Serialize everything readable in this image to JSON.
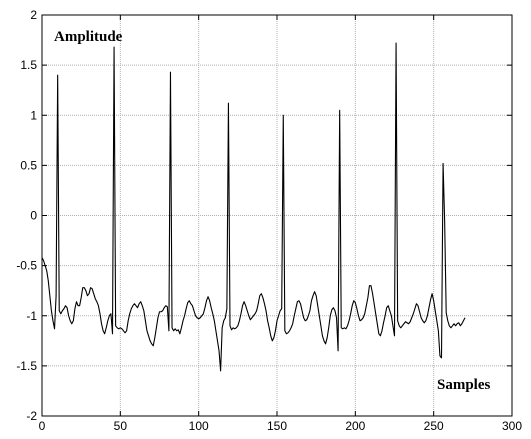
{
  "chart_data": {
    "type": "line",
    "title": "",
    "xlabel": "Samples",
    "ylabel": "Amplitude",
    "xlim": [
      0,
      300
    ],
    "ylim": [
      -2,
      2
    ],
    "xticks": [
      0,
      50,
      100,
      150,
      200,
      250,
      300
    ],
    "yticks": [
      -2,
      -1.5,
      -1,
      -0.5,
      0,
      0.5,
      1,
      1.5,
      2
    ],
    "grid": true,
    "line_color": "#000000",
    "grid_color": "#b0b0b0",
    "series": [
      {
        "points": [
          [
            0,
            -0.42
          ],
          [
            1,
            -0.45
          ],
          [
            2,
            -0.5
          ],
          [
            3,
            -0.55
          ],
          [
            4,
            -0.65
          ],
          [
            5,
            -0.8
          ],
          [
            6,
            -0.95
          ],
          [
            7,
            -1.05
          ],
          [
            8,
            -1.13
          ],
          [
            9,
            -0.8
          ],
          [
            10,
            1.4
          ],
          [
            11,
            -0.95
          ],
          [
            12,
            -0.98
          ],
          [
            13,
            -0.95
          ],
          [
            14,
            -0.93
          ],
          [
            15,
            -0.9
          ],
          [
            16,
            -0.92
          ],
          [
            17,
            -1.0
          ],
          [
            18,
            -1.05
          ],
          [
            19,
            -1.08
          ],
          [
            20,
            -1.05
          ],
          [
            21,
            -0.93
          ],
          [
            22,
            -0.86
          ],
          [
            23,
            -0.9
          ],
          [
            24,
            -0.9
          ],
          [
            25,
            -0.82
          ],
          [
            26,
            -0.72
          ],
          [
            27,
            -0.72
          ],
          [
            28,
            -0.75
          ],
          [
            29,
            -0.8
          ],
          [
            30,
            -0.78
          ],
          [
            31,
            -0.72
          ],
          [
            32,
            -0.73
          ],
          [
            33,
            -0.78
          ],
          [
            34,
            -0.83
          ],
          [
            35,
            -0.86
          ],
          [
            36,
            -0.9
          ],
          [
            37,
            -0.98
          ],
          [
            38,
            -1.08
          ],
          [
            39,
            -1.15
          ],
          [
            40,
            -1.18
          ],
          [
            41,
            -1.12
          ],
          [
            42,
            -1.05
          ],
          [
            43,
            -1.0
          ],
          [
            44,
            -0.98
          ],
          [
            45,
            -1.18
          ],
          [
            46,
            1.68
          ],
          [
            47,
            -1.1
          ],
          [
            48,
            -1.12
          ],
          [
            49,
            -1.13
          ],
          [
            50,
            -1.12
          ],
          [
            51,
            -1.13
          ],
          [
            52,
            -1.15
          ],
          [
            53,
            -1.17
          ],
          [
            54,
            -1.15
          ],
          [
            55,
            -1.05
          ],
          [
            56,
            -0.98
          ],
          [
            57,
            -0.93
          ],
          [
            58,
            -0.9
          ],
          [
            59,
            -0.88
          ],
          [
            60,
            -0.9
          ],
          [
            61,
            -0.92
          ],
          [
            62,
            -0.88
          ],
          [
            63,
            -0.86
          ],
          [
            64,
            -0.9
          ],
          [
            65,
            -0.95
          ],
          [
            66,
            -1.05
          ],
          [
            67,
            -1.15
          ],
          [
            68,
            -1.2
          ],
          [
            69,
            -1.25
          ],
          [
            70,
            -1.28
          ],
          [
            71,
            -1.3
          ],
          [
            72,
            -1.22
          ],
          [
            73,
            -1.12
          ],
          [
            74,
            -1.02
          ],
          [
            75,
            -0.96
          ],
          [
            76,
            -0.96
          ],
          [
            77,
            -0.95
          ],
          [
            78,
            -0.92
          ],
          [
            79,
            -0.9
          ],
          [
            80,
            -0.91
          ],
          [
            81,
            -1.15
          ],
          [
            82,
            1.43
          ],
          [
            83,
            -1.12
          ],
          [
            84,
            -1.15
          ],
          [
            85,
            -1.13
          ],
          [
            86,
            -1.15
          ],
          [
            87,
            -1.14
          ],
          [
            88,
            -1.18
          ],
          [
            89,
            -1.12
          ],
          [
            90,
            -1.05
          ],
          [
            91,
            -1.0
          ],
          [
            92,
            -0.93
          ],
          [
            93,
            -0.87
          ],
          [
            94,
            -0.85
          ],
          [
            95,
            -0.88
          ],
          [
            96,
            -0.9
          ],
          [
            97,
            -0.95
          ],
          [
            98,
            -1.0
          ],
          [
            99,
            -1.02
          ],
          [
            100,
            -1.03
          ],
          [
            101,
            -1.02
          ],
          [
            102,
            -1.0
          ],
          [
            103,
            -0.98
          ],
          [
            104,
            -0.92
          ],
          [
            105,
            -0.85
          ],
          [
            106,
            -0.81
          ],
          [
            107,
            -0.85
          ],
          [
            108,
            -0.92
          ],
          [
            109,
            -0.98
          ],
          [
            110,
            -1.05
          ],
          [
            111,
            -1.15
          ],
          [
            112,
            -1.25
          ],
          [
            113,
            -1.35
          ],
          [
            114,
            -1.55
          ],
          [
            115,
            -1.12
          ],
          [
            116,
            -1.05
          ],
          [
            117,
            -1.02
          ],
          [
            118,
            -0.93
          ],
          [
            119,
            1.12
          ],
          [
            120,
            -1.1
          ],
          [
            121,
            -1.14
          ],
          [
            122,
            -1.12
          ],
          [
            123,
            -1.13
          ],
          [
            124,
            -1.12
          ],
          [
            125,
            -1.1
          ],
          [
            126,
            -1.05
          ],
          [
            127,
            -0.98
          ],
          [
            128,
            -0.9
          ],
          [
            129,
            -0.86
          ],
          [
            130,
            -0.9
          ],
          [
            131,
            -0.95
          ],
          [
            132,
            -1.0
          ],
          [
            133,
            -1.04
          ],
          [
            134,
            -1.02
          ],
          [
            135,
            -1.0
          ],
          [
            136,
            -0.98
          ],
          [
            137,
            -0.95
          ],
          [
            138,
            -0.88
          ],
          [
            139,
            -0.8
          ],
          [
            140,
            -0.78
          ],
          [
            141,
            -0.82
          ],
          [
            142,
            -0.88
          ],
          [
            143,
            -0.95
          ],
          [
            144,
            -1.05
          ],
          [
            145,
            -1.12
          ],
          [
            146,
            -1.2
          ],
          [
            147,
            -1.25
          ],
          [
            148,
            -1.22
          ],
          [
            149,
            -1.15
          ],
          [
            150,
            -1.05
          ],
          [
            151,
            -1.0
          ],
          [
            152,
            -0.95
          ],
          [
            153,
            -0.93
          ],
          [
            154,
            1.0
          ],
          [
            155,
            -1.15
          ],
          [
            156,
            -1.18
          ],
          [
            157,
            -1.17
          ],
          [
            158,
            -1.15
          ],
          [
            159,
            -1.12
          ],
          [
            160,
            -1.08
          ],
          [
            161,
            -1.0
          ],
          [
            162,
            -0.93
          ],
          [
            163,
            -0.86
          ],
          [
            164,
            -0.85
          ],
          [
            165,
            -0.88
          ],
          [
            166,
            -0.95
          ],
          [
            167,
            -1.02
          ],
          [
            168,
            -1.05
          ],
          [
            169,
            -1.04
          ],
          [
            170,
            -1.0
          ],
          [
            171,
            -0.95
          ],
          [
            172,
            -0.85
          ],
          [
            173,
            -0.8
          ],
          [
            174,
            -0.76
          ],
          [
            175,
            -0.8
          ],
          [
            176,
            -0.9
          ],
          [
            177,
            -1.0
          ],
          [
            178,
            -1.1
          ],
          [
            179,
            -1.2
          ],
          [
            180,
            -1.25
          ],
          [
            181,
            -1.28
          ],
          [
            182,
            -1.22
          ],
          [
            183,
            -1.12
          ],
          [
            184,
            -1.0
          ],
          [
            185,
            -0.94
          ],
          [
            186,
            -0.92
          ],
          [
            187,
            -0.95
          ],
          [
            188,
            -1.02
          ],
          [
            189,
            -1.35
          ],
          [
            190,
            1.05
          ],
          [
            191,
            -1.12
          ],
          [
            192,
            -1.13
          ],
          [
            193,
            -1.12
          ],
          [
            194,
            -1.13
          ],
          [
            195,
            -1.1
          ],
          [
            196,
            -1.05
          ],
          [
            197,
            -0.98
          ],
          [
            198,
            -0.9
          ],
          [
            199,
            -0.85
          ],
          [
            200,
            -0.87
          ],
          [
            201,
            -0.93
          ],
          [
            202,
            -1.0
          ],
          [
            203,
            -1.05
          ],
          [
            204,
            -1.04
          ],
          [
            205,
            -1.02
          ],
          [
            206,
            -0.98
          ],
          [
            207,
            -0.9
          ],
          [
            208,
            -0.82
          ],
          [
            209,
            -0.7
          ],
          [
            210,
            -0.7
          ],
          [
            211,
            -0.78
          ],
          [
            212,
            -0.88
          ],
          [
            213,
            -0.98
          ],
          [
            214,
            -1.08
          ],
          [
            215,
            -1.18
          ],
          [
            216,
            -1.2
          ],
          [
            217,
            -1.15
          ],
          [
            218,
            -1.07
          ],
          [
            219,
            -1.0
          ],
          [
            220,
            -0.92
          ],
          [
            221,
            -0.9
          ],
          [
            222,
            -0.95
          ],
          [
            223,
            -1.0
          ],
          [
            224,
            -1.1
          ],
          [
            225,
            -1.2
          ],
          [
            226,
            1.72
          ],
          [
            227,
            -1.05
          ],
          [
            228,
            -1.1
          ],
          [
            229,
            -1.12
          ],
          [
            230,
            -1.1
          ],
          [
            231,
            -1.08
          ],
          [
            232,
            -1.06
          ],
          [
            233,
            -1.07
          ],
          [
            234,
            -1.08
          ],
          [
            235,
            -1.06
          ],
          [
            236,
            -1.02
          ],
          [
            237,
            -0.98
          ],
          [
            238,
            -0.93
          ],
          [
            239,
            -0.88
          ],
          [
            240,
            -0.9
          ],
          [
            241,
            -0.96
          ],
          [
            242,
            -1.02
          ],
          [
            243,
            -1.05
          ],
          [
            244,
            -1.07
          ],
          [
            245,
            -1.05
          ],
          [
            246,
            -1.0
          ],
          [
            247,
            -0.92
          ],
          [
            248,
            -0.84
          ],
          [
            249,
            -0.78
          ],
          [
            250,
            -0.85
          ],
          [
            251,
            -0.95
          ],
          [
            252,
            -1.05
          ],
          [
            253,
            -1.15
          ],
          [
            254,
            -1.4
          ],
          [
            255,
            -1.42
          ],
          [
            256,
            0.52
          ],
          [
            257,
            -0.05
          ],
          [
            258,
            -0.97
          ],
          [
            259,
            -1.05
          ],
          [
            260,
            -1.1
          ],
          [
            261,
            -1.12
          ],
          [
            262,
            -1.1
          ],
          [
            263,
            -1.08
          ],
          [
            264,
            -1.1
          ],
          [
            265,
            -1.08
          ],
          [
            266,
            -1.07
          ],
          [
            267,
            -1.1
          ],
          [
            268,
            -1.08
          ],
          [
            269,
            -1.05
          ],
          [
            270,
            -1.02
          ]
        ]
      }
    ]
  }
}
